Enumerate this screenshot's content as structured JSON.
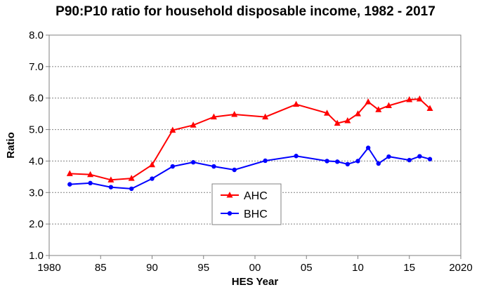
{
  "chart_data": {
    "type": "line",
    "title": "P90:P10 ratio for household disposable income, 1982 - 2017",
    "xlabel": "HES Year",
    "ylabel": "Ratio",
    "xlim": [
      1980,
      2020
    ],
    "ylim": [
      1.0,
      8.0
    ],
    "x_ticks": [
      1980,
      1985,
      1990,
      1995,
      2000,
      2005,
      2010,
      2015,
      2020
    ],
    "x_tick_labels": [
      "1980",
      "85",
      "90",
      "95",
      "00",
      "05",
      "10",
      "15",
      "2020"
    ],
    "y_ticks": [
      1.0,
      2.0,
      3.0,
      4.0,
      5.0,
      6.0,
      7.0,
      8.0
    ],
    "y_tick_labels": [
      "1.0",
      "2.0",
      "3.0",
      "4.0",
      "5.0",
      "6.0",
      "7.0",
      "8.0"
    ],
    "grid": "horizontal dashed",
    "legend_position": "center-left",
    "series": [
      {
        "name": "AHC",
        "color": "#ff0000",
        "marker": "triangle",
        "x": [
          1982,
          1984,
          1986,
          1988,
          1990,
          1992,
          1994,
          1996,
          1998,
          2001,
          2004,
          2007,
          2008,
          2009,
          2010,
          2011,
          2012,
          2013,
          2015,
          2016,
          2017
        ],
        "y": [
          3.6,
          3.57,
          3.4,
          3.45,
          3.88,
          4.98,
          5.14,
          5.4,
          5.48,
          5.4,
          5.8,
          5.52,
          5.2,
          5.28,
          5.5,
          5.88,
          5.63,
          5.76,
          5.95,
          5.97,
          5.67
        ]
      },
      {
        "name": "BHC",
        "color": "#0000ff",
        "marker": "circle",
        "x": [
          1982,
          1984,
          1986,
          1988,
          1990,
          1992,
          1994,
          1996,
          1998,
          2001,
          2004,
          2007,
          2008,
          2009,
          2010,
          2011,
          2012,
          2013,
          2015,
          2016,
          2017
        ],
        "y": [
          3.26,
          3.3,
          3.17,
          3.12,
          3.44,
          3.83,
          3.96,
          3.83,
          3.72,
          4.01,
          4.16,
          4.0,
          3.98,
          3.9,
          4.0,
          4.42,
          3.92,
          4.14,
          4.03,
          4.15,
          4.06
        ]
      }
    ]
  }
}
